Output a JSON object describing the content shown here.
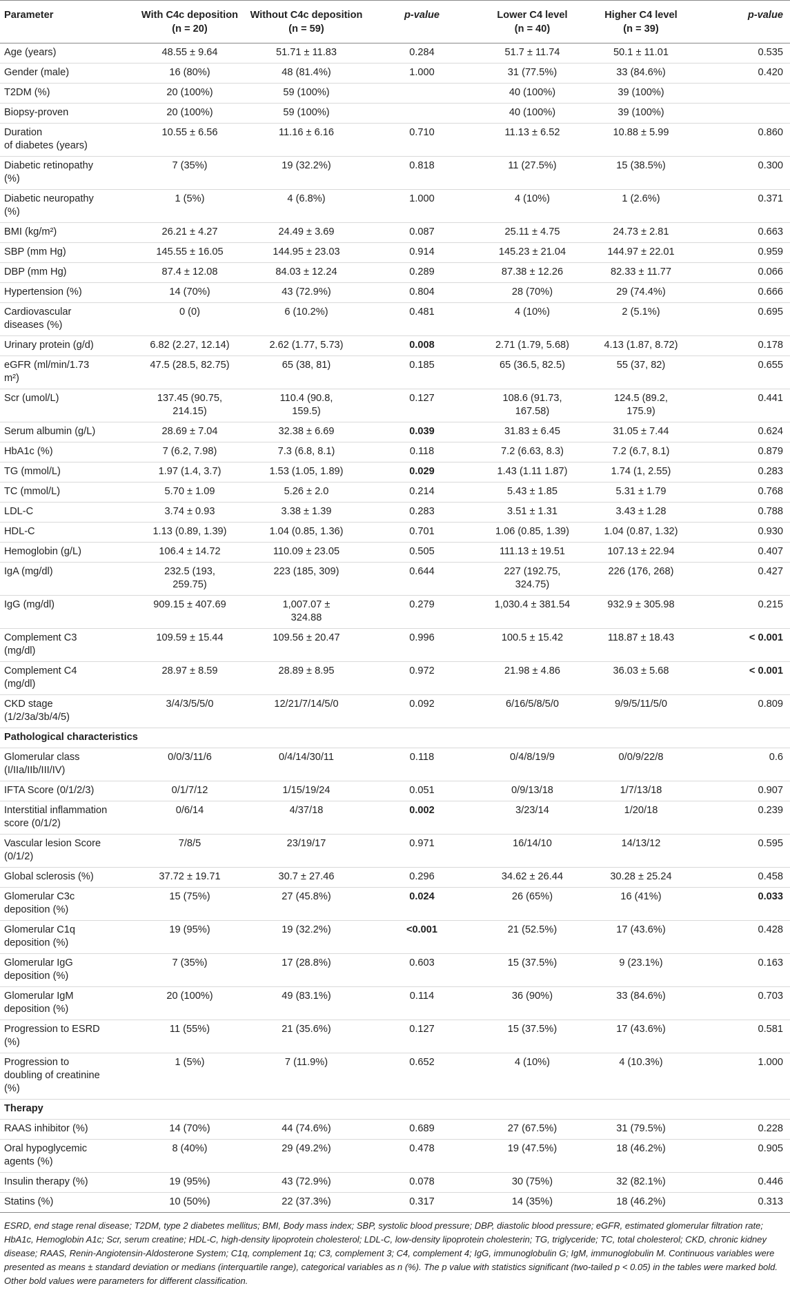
{
  "header": {
    "parameter": "Parameter",
    "with_c4c": "With C4c deposition",
    "with_c4c_n": "(n = 20)",
    "without_c4c": "Without C4c deposition",
    "without_c4c_n": "(n = 59)",
    "pvalue": "p-value",
    "lower_c4": "Lower C4 level",
    "lower_c4_n": "(n = 40)",
    "higher_c4": "Higher C4 level",
    "higher_c4_n": "(n = 39)",
    "pvalue2": "p-value"
  },
  "rows": [
    {
      "type": "row",
      "param": "Age (years)",
      "with": "48.55 ± 9.64",
      "without": "51.71 ± 11.83",
      "p1": "0.284",
      "lower": "51.7 ± 11.74",
      "higher": "50.1 ± 11.01",
      "p2": "0.535"
    },
    {
      "type": "row",
      "param": "Gender (male)",
      "with": "16 (80%)",
      "without": "48 (81.4%)",
      "p1": "1.000",
      "lower": "31 (77.5%)",
      "higher": "33 (84.6%)",
      "p2": "0.420"
    },
    {
      "type": "row",
      "param": "T2DM (%)",
      "with": "20 (100%)",
      "without": "59 (100%)",
      "p1": "",
      "lower": "40 (100%)",
      "higher": "39 (100%)",
      "p2": ""
    },
    {
      "type": "row",
      "param": "Biopsy-proven",
      "with": "20 (100%)",
      "without": "59 (100%)",
      "p1": "",
      "lower": "40 (100%)",
      "higher": "39 (100%)",
      "p2": ""
    },
    {
      "type": "row",
      "param": "Duration\nof diabetes (years)",
      "with": "10.55 ± 6.56",
      "without": "11.16 ± 6.16",
      "p1": "0.710",
      "lower": "11.13 ± 6.52",
      "higher": "10.88 ± 5.99",
      "p2": "0.860"
    },
    {
      "type": "row",
      "param": "Diabetic retinopathy\n(%)",
      "with": "7 (35%)",
      "without": "19 (32.2%)",
      "p1": "0.818",
      "lower": "11 (27.5%)",
      "higher": "15 (38.5%)",
      "p2": "0.300"
    },
    {
      "type": "row",
      "param": "Diabetic neuropathy\n(%)",
      "with": "1 (5%)",
      "without": "4 (6.8%)",
      "p1": "1.000",
      "lower": "4 (10%)",
      "higher": "1 (2.6%)",
      "p2": "0.371"
    },
    {
      "type": "row",
      "param": "BMI (kg/m²)",
      "with": "26.21 ± 4.27",
      "without": "24.49 ± 3.69",
      "p1": "0.087",
      "lower": "25.11 ± 4.75",
      "higher": "24.73 ± 2.81",
      "p2": "0.663"
    },
    {
      "type": "row",
      "param": "SBP (mm Hg)",
      "with": "145.55 ± 16.05",
      "without": "144.95 ± 23.03",
      "p1": "0.914",
      "lower": "145.23 ± 21.04",
      "higher": "144.97 ± 22.01",
      "p2": "0.959"
    },
    {
      "type": "row",
      "param": "DBP (mm Hg)",
      "with": "87.4 ± 12.08",
      "without": "84.03 ± 12.24",
      "p1": "0.289",
      "lower": "87.38 ± 12.26",
      "higher": "82.33 ± 11.77",
      "p2": "0.066"
    },
    {
      "type": "row",
      "param": "Hypertension (%)",
      "with": "14 (70%)",
      "without": "43 (72.9%)",
      "p1": "0.804",
      "lower": "28 (70%)",
      "higher": "29 (74.4%)",
      "p2": "0.666"
    },
    {
      "type": "row",
      "param": "Cardiovascular\ndiseases (%)",
      "with": "0 (0)",
      "without": "6 (10.2%)",
      "p1": "0.481",
      "lower": "4 (10%)",
      "higher": "2 (5.1%)",
      "p2": "0.695"
    },
    {
      "type": "row",
      "param": "Urinary protein (g/d)",
      "with": "6.82 (2.27, 12.14)",
      "without": "2.62 (1.77, 5.73)",
      "p1": "0.008",
      "p1_bold": true,
      "lower": "2.71 (1.79, 5.68)",
      "higher": "4.13 (1.87, 8.72)",
      "p2": "0.178"
    },
    {
      "type": "row",
      "param": "eGFR (ml/min/1.73\nm²)",
      "with": "47.5 (28.5, 82.75)",
      "without": "65 (38, 81)",
      "p1": "0.185",
      "lower": "65 (36.5, 82.5)",
      "higher": "55 (37, 82)",
      "p2": "0.655"
    },
    {
      "type": "row",
      "param": "Scr (umol/L)",
      "with": "137.45 (90.75,\n214.15)",
      "without": "110.4 (90.8,\n159.5)",
      "p1": "0.127",
      "lower": "108.6 (91.73,\n167.58)",
      "higher": "124.5 (89.2,\n175.9)",
      "p2": "0.441"
    },
    {
      "type": "row",
      "param": "Serum albumin (g/L)",
      "with": "28.69 ± 7.04",
      "without": "32.38 ± 6.69",
      "p1": "0.039",
      "p1_bold": true,
      "lower": "31.83 ± 6.45",
      "higher": "31.05 ± 7.44",
      "p2": "0.624"
    },
    {
      "type": "row",
      "param": "HbA1c (%)",
      "with": "7 (6.2, 7.98)",
      "without": "7.3 (6.8, 8.1)",
      "p1": "0.118",
      "lower": "7.2 (6.63, 8.3)",
      "higher": "7.2 (6.7, 8.1)",
      "p2": "0.879"
    },
    {
      "type": "row",
      "param": "TG (mmol/L)",
      "with": "1.97 (1.4, 3.7)",
      "without": "1.53 (1.05, 1.89)",
      "p1": "0.029",
      "p1_bold": true,
      "lower": "1.43 (1.11 1.87)",
      "higher": "1.74 (1, 2.55)",
      "p2": "0.283"
    },
    {
      "type": "row",
      "param": "TC (mmol/L)",
      "with": "5.70 ± 1.09",
      "without": "5.26 ± 2.0",
      "p1": "0.214",
      "lower": "5.43 ± 1.85",
      "higher": "5.31 ± 1.79",
      "p2": "0.768"
    },
    {
      "type": "row",
      "param": "LDL-C",
      "with": "3.74 ± 0.93",
      "without": "3.38 ± 1.39",
      "p1": "0.283",
      "lower": "3.51 ± 1.31",
      "higher": "3.43 ± 1.28",
      "p2": "0.788"
    },
    {
      "type": "row",
      "param": "HDL-C",
      "with": "1.13 (0.89, 1.39)",
      "without": "1.04 (0.85, 1.36)",
      "p1": "0.701",
      "lower": "1.06 (0.85, 1.39)",
      "higher": "1.04 (0.87, 1.32)",
      "p2": "0.930"
    },
    {
      "type": "row",
      "param": "Hemoglobin (g/L)",
      "with": "106.4 ± 14.72",
      "without": "110.09 ± 23.05",
      "p1": "0.505",
      "lower": "111.13 ± 19.51",
      "higher": "107.13 ± 22.94",
      "p2": "0.407"
    },
    {
      "type": "row",
      "param": "IgA (mg/dl)",
      "with": "232.5 (193,\n259.75)",
      "without": "223 (185, 309)",
      "p1": "0.644",
      "lower": "227 (192.75,\n324.75)",
      "higher": "226 (176, 268)",
      "p2": "0.427"
    },
    {
      "type": "row",
      "param": "IgG (mg/dl)",
      "with": "909.15 ± 407.69",
      "without": "1,007.07 ±\n324.88",
      "p1": "0.279",
      "lower": "1,030.4 ± 381.54",
      "higher": "932.9 ± 305.98",
      "p2": "0.215"
    },
    {
      "type": "row",
      "param": "Complement C3\n(mg/dl)",
      "with": "109.59 ± 15.44",
      "without": "109.56 ± 20.47",
      "p1": "0.996",
      "lower": "100.5 ± 15.42",
      "higher": "118.87 ± 18.43",
      "p2": "< 0.001",
      "p2_bold": true
    },
    {
      "type": "row",
      "param": "Complement C4\n(mg/dl)",
      "with": "28.97 ± 8.59",
      "without": "28.89 ± 8.95",
      "p1": "0.972",
      "lower": "21.98 ± 4.86",
      "higher": "36.03 ± 5.68",
      "p2": "< 0.001",
      "p2_bold": true
    },
    {
      "type": "row",
      "param": "CKD stage\n(1/2/3a/3b/4/5)",
      "with": "3/4/3/5/5/0",
      "without": "12/21/7/14/5/0",
      "p1": "0.092",
      "lower": "6/16/5/8/5/0",
      "higher": "9/9/5/11/5/0",
      "p2": "0.809"
    },
    {
      "type": "section",
      "param": "Pathological characteristics"
    },
    {
      "type": "row",
      "param": "Glomerular class\n(I/IIa/IIb/III/IV)",
      "with": "0/0/3/11/6",
      "without": "0/4/14/30/11",
      "p1": "0.118",
      "lower": "0/4/8/19/9",
      "higher": "0/0/9/22/8",
      "p2": "0.6"
    },
    {
      "type": "row",
      "param": "IFTA Score (0/1/2/3)",
      "with": "0/1/7/12",
      "without": "1/15/19/24",
      "p1": "0.051",
      "lower": "0/9/13/18",
      "higher": "1/7/13/18",
      "p2": "0.907"
    },
    {
      "type": "row",
      "param": "Interstitial inflammation\nscore (0/1/2)",
      "with": "0/6/14",
      "without": "4/37/18",
      "p1": "0.002",
      "p1_bold": true,
      "lower": "3/23/14",
      "higher": "1/20/18",
      "p2": "0.239"
    },
    {
      "type": "row",
      "param": "Vascular lesion Score\n(0/1/2)",
      "with": "7/8/5",
      "without": "23/19/17",
      "p1": "0.971",
      "lower": "16/14/10",
      "higher": "14/13/12",
      "p2": "0.595"
    },
    {
      "type": "row",
      "param": "Global sclerosis (%)",
      "with": "37.72 ± 19.71",
      "without": "30.7 ± 27.46",
      "p1": "0.296",
      "lower": "34.62 ± 26.44",
      "higher": "30.28 ± 25.24",
      "p2": "0.458"
    },
    {
      "type": "row",
      "param": "Glomerular C3c\ndeposition (%)",
      "with": "15 (75%)",
      "without": "27 (45.8%)",
      "p1": "0.024",
      "p1_bold": true,
      "lower": "26 (65%)",
      "higher": "16 (41%)",
      "p2": "0.033",
      "p2_bold": true
    },
    {
      "type": "row",
      "param": "Glomerular C1q\ndeposition (%)",
      "with": "19 (95%)",
      "without": "19 (32.2%)",
      "p1": "<0.001",
      "p1_bold": true,
      "lower": "21 (52.5%)",
      "higher": "17 (43.6%)",
      "p2": "0.428"
    },
    {
      "type": "row",
      "param": "Glomerular IgG\ndeposition (%)",
      "with": "7 (35%)",
      "without": "17 (28.8%)",
      "p1": "0.603",
      "lower": "15 (37.5%)",
      "higher": "9 (23.1%)",
      "p2": "0.163"
    },
    {
      "type": "row",
      "param": "Glomerular IgM\ndeposition (%)",
      "with": "20 (100%)",
      "without": "49 (83.1%)",
      "p1": "0.114",
      "lower": "36 (90%)",
      "higher": "33 (84.6%)",
      "p2": "0.703"
    },
    {
      "type": "row",
      "param": "Progression to ESRD\n(%)",
      "with": "11 (55%)",
      "without": "21 (35.6%)",
      "p1": "0.127",
      "lower": "15 (37.5%)",
      "higher": "17 (43.6%)",
      "p2": "0.581"
    },
    {
      "type": "row",
      "param": "Progression to\ndoubling of creatinine\n(%)",
      "with": "1 (5%)",
      "without": "7 (11.9%)",
      "p1": "0.652",
      "lower": "4 (10%)",
      "higher": "4 (10.3%)",
      "p2": "1.000"
    },
    {
      "type": "section",
      "param": "Therapy"
    },
    {
      "type": "row",
      "param": "RAAS inhibitor (%)",
      "with": "14 (70%)",
      "without": "44 (74.6%)",
      "p1": "0.689",
      "lower": "27 (67.5%)",
      "higher": "31 (79.5%)",
      "p2": "0.228"
    },
    {
      "type": "row",
      "param": "Oral hypoglycemic\nagents (%)",
      "with": "8 (40%)",
      "without": "29 (49.2%)",
      "p1": "0.478",
      "lower": "19 (47.5%)",
      "higher": "18 (46.2%)",
      "p2": "0.905"
    },
    {
      "type": "row",
      "param": "Insulin therapy (%)",
      "with": "19 (95%)",
      "without": "43 (72.9%)",
      "p1": "0.078",
      "lower": "30 (75%)",
      "higher": "32 (82.1%)",
      "p2": "0.446"
    },
    {
      "type": "row",
      "param": "Statins (%)",
      "with": "10 (50%)",
      "without": "22 (37.3%)",
      "p1": "0.317",
      "lower": "14 (35%)",
      "higher": "18 (46.2%)",
      "p2": "0.313"
    }
  ],
  "footnote": "ESRD, end stage renal disease; T2DM, type 2 diabetes mellitus; BMI, Body mass index; SBP, systolic blood pressure; DBP, diastolic blood pressure; eGFR, estimated glomerular filtration rate; HbA1c, Hemoglobin A1c; Scr, serum creatine; HDL-C, high-density lipoprotein cholesterol; LDL-C, low-density lipoprotein cholesterin; TG, triglyceride; TC, total cholesterol; CKD, chronic kidney disease; RAAS, Renin-Angiotensin-Aldosterone System; C1q, complement 1q; C3, complement 3; C4, complement 4; IgG, immunoglobulin G; IgM, immunoglobulin M. Continuous variables were presented as means ± standard deviation or medians (interquartile range), categorical variables as n (%). The p value with statistics significant (two-tailed p < 0.05) in the tables were marked bold. Other bold values were parameters for different classification."
}
